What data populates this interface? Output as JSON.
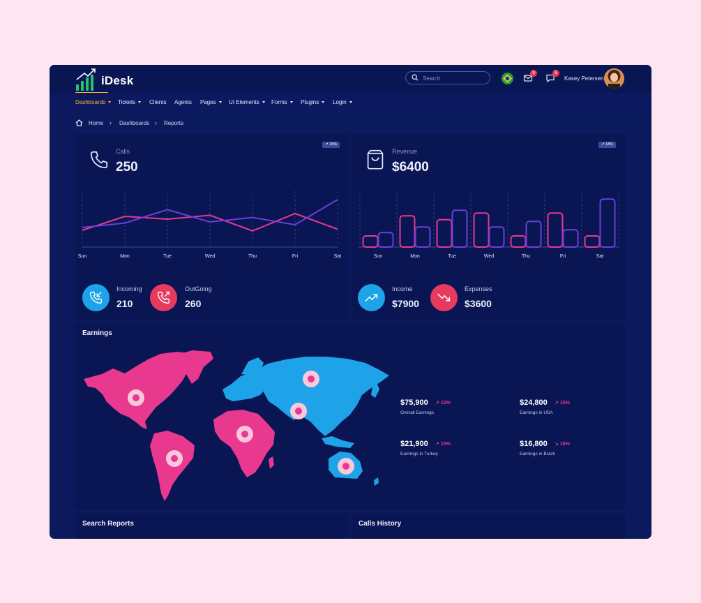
{
  "app": {
    "brand": "iDesk"
  },
  "header": {
    "search_placeholder": "Search",
    "mail_badge": "9",
    "chat_badge": "5",
    "username": "Kasey Petersen"
  },
  "nav": {
    "items": [
      {
        "label": "Dashboards",
        "dropdown": true,
        "active": true
      },
      {
        "label": "Tickets",
        "dropdown": true
      },
      {
        "label": "Clients",
        "dropdown": false
      },
      {
        "label": "Agents",
        "dropdown": false
      },
      {
        "label": "Pages",
        "dropdown": true
      },
      {
        "label": "UI Elements",
        "dropdown": true
      },
      {
        "label": "Forms",
        "dropdown": true
      },
      {
        "label": "Plugins",
        "dropdown": true
      },
      {
        "label": "Login",
        "dropdown": true
      }
    ]
  },
  "breadcrumb": {
    "home": "Home",
    "dashboards": "Dashboards",
    "current": "Reports"
  },
  "calls_card": {
    "label": "Calls",
    "value": "250",
    "badge": "15%",
    "incoming_label": "Incoming",
    "incoming_value": "210",
    "outgoing_label": "OutGoing",
    "outgoing_value": "260"
  },
  "revenue_card": {
    "label": "Revenue",
    "value": "$6400",
    "badge": "18%",
    "income_label": "Income",
    "income_value": "$7900",
    "expenses_label": "Expenses",
    "expenses_value": "$3600"
  },
  "earnings": {
    "title": "Earnings",
    "items": [
      {
        "value": "$75,900",
        "pct": "12%",
        "label": "Overall Earnings"
      },
      {
        "value": "$24,800",
        "pct": "15%",
        "label": "Earnings in USA"
      },
      {
        "value": "$21,900",
        "pct": "15%",
        "label": "Earnings in Turkey"
      },
      {
        "value": "$16,800",
        "pct": "18%",
        "label": "Earnings in Brazil"
      }
    ]
  },
  "bottom": {
    "search_reports_title": "Search Reports",
    "calls_history_title": "Calls History"
  },
  "colors": {
    "pink": "#e8398f",
    "purple": "#6c3fd9",
    "blue": "#1ea3e8",
    "red": "#e63b5f",
    "gold": "#f5b82e"
  },
  "chart_data": [
    {
      "type": "line",
      "categories": [
        "Sun",
        "Mon",
        "Tue",
        "Wed",
        "Thu",
        "Fri",
        "Sat"
      ],
      "series": [
        {
          "values": [
            30,
            55,
            50,
            57,
            29,
            60,
            32
          ]
        },
        {
          "values": [
            35,
            43,
            67,
            45,
            53,
            40,
            85
          ]
        }
      ],
      "ylim": [
        0,
        100
      ]
    },
    {
      "type": "bar",
      "categories": [
        "Sun",
        "Mon",
        "Tue",
        "Wed",
        "Thu",
        "Fri",
        "Sat"
      ],
      "series": [
        {
          "values": [
            20,
            56,
            49,
            61,
            20,
            61,
            20
          ]
        },
        {
          "values": [
            26,
            36,
            66,
            36,
            46,
            31,
            86
          ]
        }
      ],
      "ylim": [
        0,
        100
      ]
    }
  ]
}
